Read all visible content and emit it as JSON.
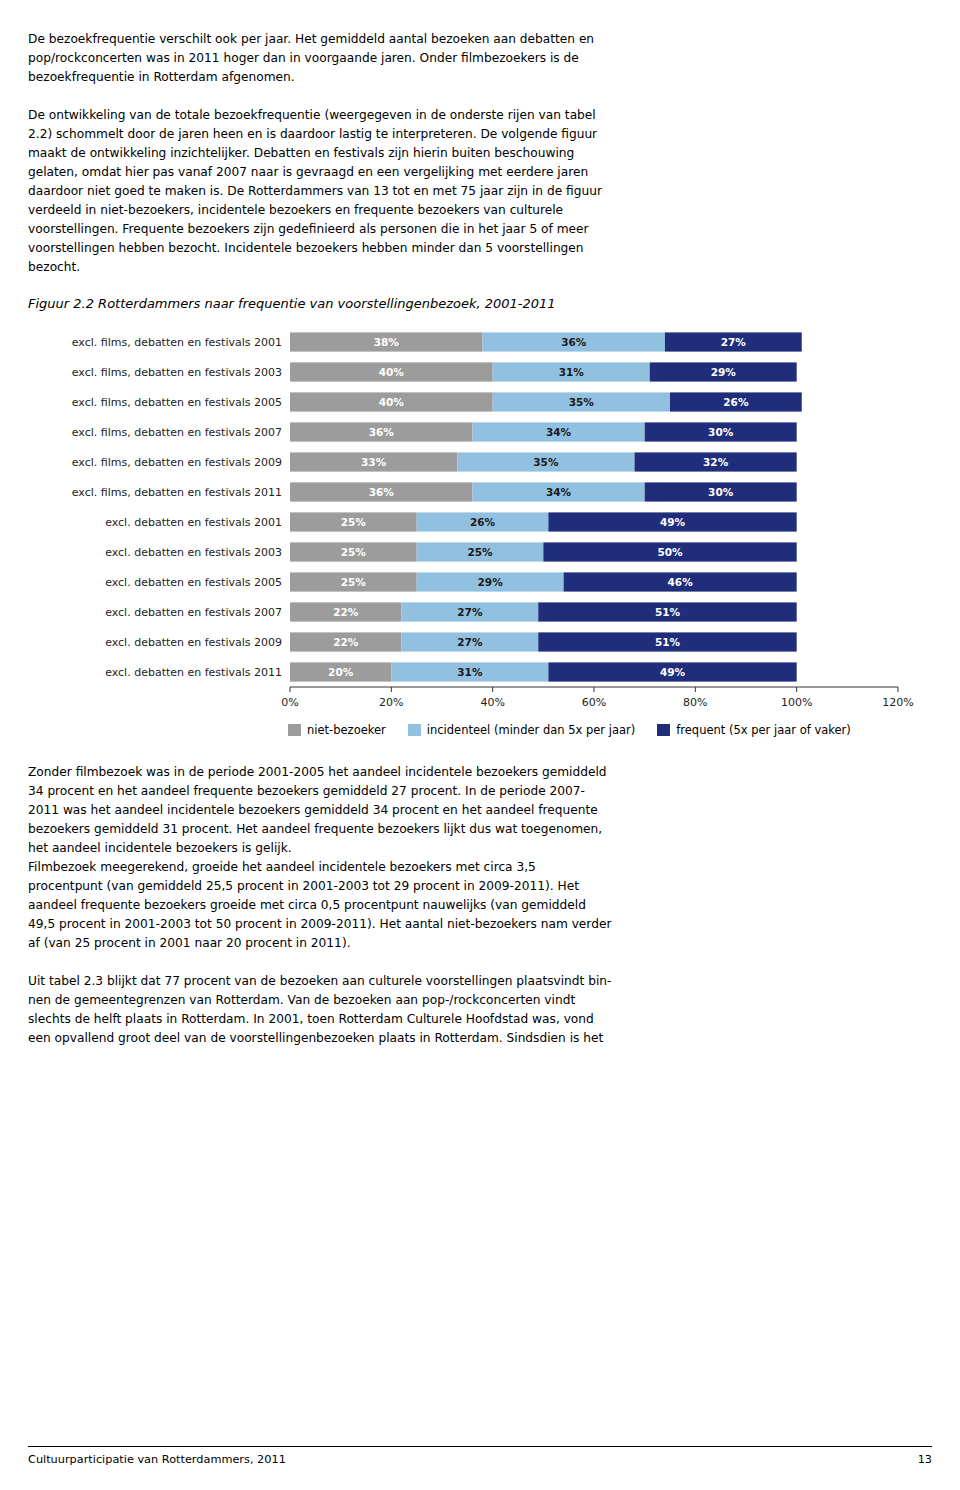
{
  "text_before": [
    [
      "De bezoekfrequentie verschilt ook per jaar. Het gemiddeld aantal bezoeken aan debatten en",
      "pop/rockconcerten was in 2011 hoger dan in voorgaande jaren. Onder filmbezoekers is de",
      "bezoekfrequentie in Rotterdam afgenomen."
    ],
    [
      "De ontwikkeling van de totale bezoekfrequentie (weergegeven in de onderste rijen van tabel",
      "2.2) schommelt door de jaren heen en is daardoor lastig te interpreteren. De volgende figuur",
      "maakt de ontwikkeling inzichtelijker. Debatten en festivals zijn hierin buiten beschouwing",
      "gelaten, omdat hier pas vanaf 2007 naar is gevraagd en een vergelijking met eerdere jaren",
      "daardoor niet goed te maken is. De Rotterdammers van 13 tot en met 75 jaar zijn in de figuur",
      "verdeeld in niet-bezoekers, incidentele bezoekers en frequente bezoekers van culturele",
      "voorstellingen. Frequente bezoekers zijn gedefinieerd als personen die in het jaar 5 of meer",
      "voorstellingen hebben bezocht. Incidentele bezoekers hebben minder dan 5 voorstellingen",
      "bezocht."
    ]
  ],
  "text_after": [
    [
      "Zonder filmbezoek was in de periode 2001-2005 het aandeel incidentele bezoekers gemiddeld",
      "34 procent en het aandeel frequente bezoekers gemiddeld 27 procent. In de periode 2007-",
      "2011 was het aandeel incidentele bezoekers gemiddeld 34 procent en het aandeel frequente",
      "bezoekers gemiddeld 31 procent. Het aandeel frequente bezoekers lijkt dus wat toegenomen,",
      "het aandeel incidentele bezoekers is gelijk.",
      "Filmbezoek meegerekend, groeide het aandeel incidentele bezoekers met circa 3,5",
      "procentpunt (van gemiddeld 25,5 procent in 2001-2003 tot 29 procent in 2009-2011). Het",
      "aandeel frequente bezoekers groeide met circa 0,5 procentpunt nauwelijks (van gemiddeld",
      "49,5 procent in 2001-2003 tot 50 procent in 2009-2011). Het aantal niet-bezoekers nam verder",
      "af (van 25 procent in 2001 naar 20 procent in 2011)."
    ],
    [
      "Uit tabel 2.3 blijkt dat 77 procent van de bezoeken aan culturele voorstellingen plaatsvindt bin-",
      "nen de gemeentegrenzen van Rotterdam. Van de bezoeken aan pop-/rockconcerten vindt",
      "slechts de helft plaats in Rotterdam. In 2001, toen Rotterdam Culturele Hoofdstad was, vond",
      "een opvallend groot deel van de voorstellingenbezoeken plaats in Rotterdam. Sindsdien is het"
    ]
  ],
  "footer_left": "Cultuurparticipatie van Rotterdammers, 2011",
  "footer_right": "13",
  "chart_data": {
    "type": "bar",
    "orientation": "horizontal",
    "stacked": true,
    "data_labels": true,
    "grid": false,
    "legend": "bottom",
    "title": "Figuur 2.2   Rotterdammers naar frequentie van voorstellingenbezoek, 2001-2011",
    "categories": [
      "excl. films, debatten en festivals 2001",
      "excl. films, debatten en festivals 2003",
      "excl. films, debatten en festivals 2005",
      "excl. films, debatten en festivals 2007",
      "excl. films, debatten en festivals 2009",
      "excl. films, debatten en festivals 2011",
      "excl. debatten en festivals 2001",
      "excl. debatten en festivals 2003",
      "excl. debatten en festivals 2005",
      "excl. debatten en festivals 2007",
      "excl. debatten en festivals 2009",
      "excl. debatten en festivals 2011"
    ],
    "series": [
      {
        "name": "niet-bezoeker",
        "color": "#9C9C9C",
        "values": [
          38,
          40,
          40,
          36,
          33,
          36,
          25,
          25,
          25,
          22,
          22,
          20
        ],
        "value_labels": [
          "38%",
          "40%",
          "40%",
          "36%",
          "33%",
          "36%",
          "25%",
          "25%",
          "25%",
          "22%",
          "22%",
          "20%"
        ]
      },
      {
        "name": "incidenteel (minder dan 5x per jaar)",
        "color": "#92C0E0",
        "values": [
          36,
          31,
          35,
          34,
          35,
          34,
          26,
          25,
          29,
          27,
          27,
          31
        ],
        "value_labels": [
          "36%",
          "31%",
          "35%",
          "34%",
          "35%",
          "34%",
          "26%",
          "25%",
          "29%",
          "27%",
          "27%",
          "31%"
        ]
      },
      {
        "name": "frequent (5x per jaar of vaker)",
        "color": "#1F2D7B",
        "values": [
          27,
          29,
          26,
          30,
          32,
          30,
          49,
          50,
          46,
          51,
          51,
          49
        ],
        "value_labels": [
          "27%",
          "29%",
          "26%",
          "30%",
          "32%",
          "30%",
          "49%",
          "50%",
          "46%",
          "51%",
          "51%",
          "49%"
        ]
      }
    ],
    "xlim": [
      0,
      120
    ],
    "xticks": [
      {
        "value": 0,
        "label": "0%"
      },
      {
        "value": 20,
        "label": "20%"
      },
      {
        "value": 40,
        "label": "40%"
      },
      {
        "value": 60,
        "label": "60%"
      },
      {
        "value": 80,
        "label": "80%"
      },
      {
        "value": 100,
        "label": "100%"
      },
      {
        "value": 120,
        "label": "120%"
      }
    ]
  }
}
